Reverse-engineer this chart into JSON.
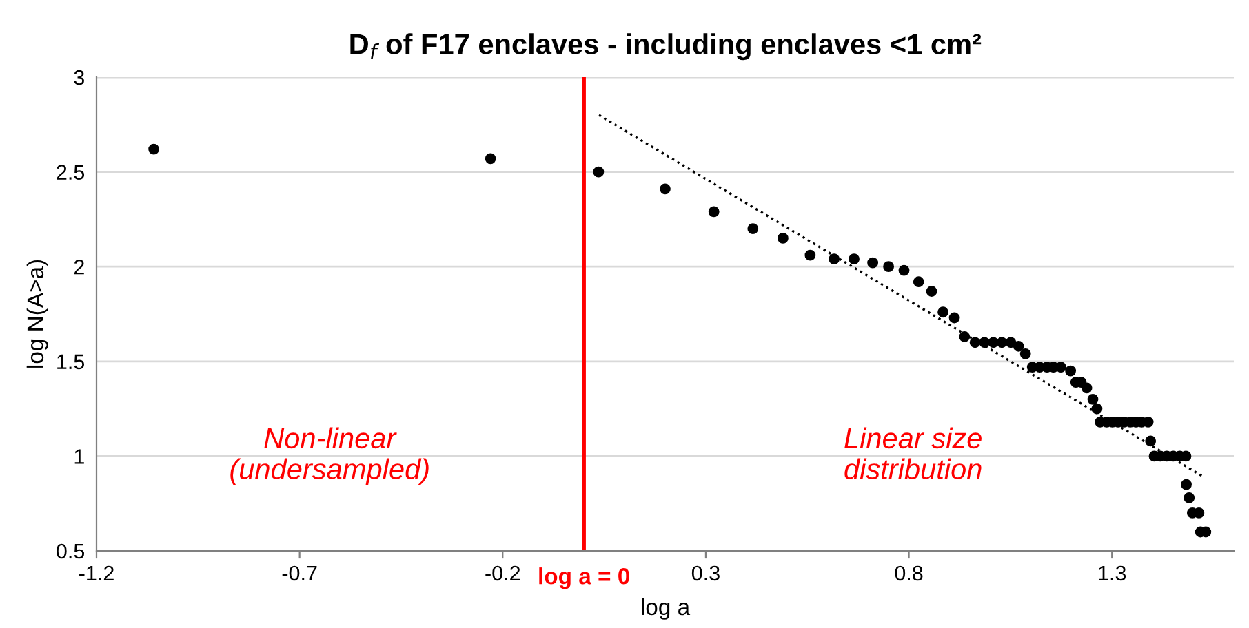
{
  "chart_data": {
    "type": "scatter",
    "title": "D$_{f}$ of F17 enclaves - including enclaves <1 cm²",
    "xlabel": "log a",
    "ylabel": "log N(A>a)",
    "xlim": [
      -1.2,
      1.6
    ],
    "ylim": [
      0.5,
      3
    ],
    "xticks": [
      -1.2,
      -0.7,
      -0.2,
      0.3,
      0.8,
      1.3
    ],
    "yticks": [
      0.5,
      1,
      1.5,
      2,
      2.5,
      3
    ],
    "grid": "y",
    "series": [
      {
        "color": "#000000",
        "marker": "circle",
        "x": [
          -1.059,
          -0.23,
          0.036,
          0.2,
          0.32,
          0.416,
          0.49,
          0.557,
          0.616,
          0.665,
          0.711,
          0.75,
          0.788,
          0.824,
          0.856,
          0.884,
          0.912,
          0.937,
          0.963,
          0.986,
          1.008,
          1.029,
          1.051,
          1.07,
          1.087,
          1.104,
          1.122,
          1.14,
          1.156,
          1.174,
          1.198,
          1.211,
          1.224,
          1.238,
          1.253,
          1.263,
          1.271,
          1.287,
          1.301,
          1.315,
          1.33,
          1.345,
          1.359,
          1.373,
          1.389,
          1.395,
          1.404,
          1.419,
          1.435,
          1.451,
          1.467,
          1.482,
          1.483,
          1.49,
          1.498,
          1.514,
          1.518,
          1.531
        ],
        "values": [
          2.62,
          2.57,
          2.5,
          2.41,
          2.29,
          2.2,
          2.15,
          2.06,
          2.04,
          2.04,
          2.02,
          2.0,
          1.98,
          1.92,
          1.87,
          1.76,
          1.73,
          1.63,
          1.6,
          1.6,
          1.6,
          1.6,
          1.6,
          1.58,
          1.54,
          1.47,
          1.47,
          1.47,
          1.47,
          1.47,
          1.45,
          1.39,
          1.39,
          1.36,
          1.3,
          1.25,
          1.18,
          1.18,
          1.18,
          1.18,
          1.18,
          1.18,
          1.18,
          1.18,
          1.18,
          1.08,
          1.0,
          1.0,
          1.0,
          1.0,
          1.0,
          1.0,
          0.85,
          0.78,
          0.7,
          0.7,
          0.6,
          0.6
        ]
      },
      {
        "type": "line",
        "color": "#000000",
        "line_style": "dotted",
        "x": [
          0.037,
          1.526
        ],
        "values": [
          2.8,
          0.89
        ]
      }
    ],
    "ref_lines": [
      {
        "axis": "x",
        "value": 0,
        "label": "log a = 0",
        "color": "#ff0000",
        "line_style": "solid"
      }
    ],
    "annotations": [
      "Non-linear\n(undersampled)",
      "Linear size\ndistribution"
    ]
  }
}
